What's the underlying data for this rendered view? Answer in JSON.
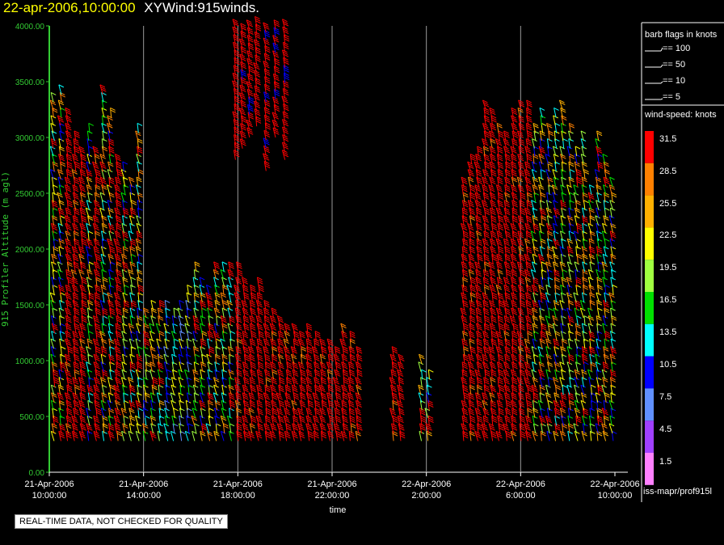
{
  "header": {
    "date_time": "22-apr-2006,10:00:00",
    "title": "XYWind:915winds."
  },
  "qc_note": "REAL-TIME DATA, NOT CHECKED FOR QUALITY",
  "source_label": "iss-mapr/prof915l",
  "barb_legend": {
    "title": "barb flags in knots",
    "entries": [
      "== 100",
      "== 50",
      "== 10",
      "== 5"
    ]
  },
  "speed_legend": {
    "title": "wind-speed: knots",
    "levels": [
      {
        "label": "31.5",
        "color": "#ff0000"
      },
      {
        "label": "28.5",
        "color": "#ff8000"
      },
      {
        "label": "25.5",
        "color": "#ffb000"
      },
      {
        "label": "22.5",
        "color": "#ffff00"
      },
      {
        "label": "19.5",
        "color": "#a0ff40"
      },
      {
        "label": "16.5",
        "color": "#00e000"
      },
      {
        "label": "13.5",
        "color": "#00ffff"
      },
      {
        "label": "10.5",
        "color": "#0000ff"
      },
      {
        "label": "7.5",
        "color": "#6090ff"
      },
      {
        "label": "4.5",
        "color": "#a040ff"
      },
      {
        "label": "1.5",
        "color": "#ff80ff"
      }
    ]
  },
  "chart_data": {
    "type": "scatter",
    "xlabel": "time",
    "ylabel": "915 Profiler Altitude (m agl)",
    "ylim": [
      0,
      4000
    ],
    "xlim_hours": [
      0,
      24
    ],
    "y_ticks": [
      "0.00",
      "500.00",
      "1000.00",
      "1500.00",
      "2000.00",
      "2500.00",
      "3000.00",
      "3500.00",
      "4000.00"
    ],
    "x_ticks": [
      {
        "hour": 0,
        "date": "21-Apr-2006",
        "time": "10:00:00"
      },
      {
        "hour": 4,
        "date": "21-Apr-2006",
        "time": "14:00:00"
      },
      {
        "hour": 8,
        "date": "21-Apr-2006",
        "time": "18:00:00"
      },
      {
        "hour": 12,
        "date": "21-Apr-2006",
        "time": "22:00:00"
      },
      {
        "hour": 16,
        "date": "22-Apr-2006",
        "time": "2:00:00"
      },
      {
        "hour": 20,
        "date": "22-Apr-2006",
        "time": "6:00:00"
      },
      {
        "hour": 24,
        "date": "22-Apr-2006",
        "time": "10:00:00"
      }
    ],
    "profiles": [
      {
        "t": 0.2,
        "top": 3350,
        "spd": "mix"
      },
      {
        "t": 0.5,
        "top": 3400,
        "spd": "mix"
      },
      {
        "t": 0.8,
        "top": 3200,
        "spd": "red"
      },
      {
        "t": 1.1,
        "top": 3000,
        "spd": "red"
      },
      {
        "t": 1.4,
        "top": 2900,
        "spd": "red"
      },
      {
        "t": 1.7,
        "top": 3100,
        "spd": "mix"
      },
      {
        "t": 2.0,
        "top": 2900,
        "spd": "red"
      },
      {
        "t": 2.3,
        "top": 3400,
        "spd": "mix"
      },
      {
        "t": 2.6,
        "top": 3200,
        "spd": "mix"
      },
      {
        "t": 2.9,
        "top": 2800,
        "spd": "red"
      },
      {
        "t": 3.2,
        "top": 2700,
        "spd": "mix"
      },
      {
        "t": 3.5,
        "top": 2600,
        "spd": "mix"
      },
      {
        "t": 3.8,
        "top": 3100,
        "spd": "mix"
      },
      {
        "t": 4.1,
        "top": 1400,
        "spd": "mix"
      },
      {
        "t": 4.4,
        "top": 1500,
        "spd": "mix"
      },
      {
        "t": 4.7,
        "top": 1500,
        "spd": "mix"
      },
      {
        "t": 5.0,
        "top": 1500,
        "spd": "low"
      },
      {
        "t": 5.3,
        "top": 1400,
        "spd": "low"
      },
      {
        "t": 5.6,
        "top": 1500,
        "spd": "low"
      },
      {
        "t": 5.9,
        "top": 1600,
        "spd": "low"
      },
      {
        "t": 6.2,
        "top": 1800,
        "spd": "mix"
      },
      {
        "t": 6.5,
        "top": 1700,
        "spd": "mix"
      },
      {
        "t": 6.8,
        "top": 1600,
        "spd": "mix"
      },
      {
        "t": 7.1,
        "top": 1800,
        "spd": "mix"
      },
      {
        "t": 7.4,
        "top": 1800,
        "spd": "mix"
      },
      {
        "t": 7.7,
        "top": 1800,
        "spd": "mix"
      },
      {
        "t": 8.0,
        "top": 1800,
        "spd": "red"
      },
      {
        "t": 8.3,
        "top": 1700,
        "spd": "red"
      },
      {
        "t": 8.6,
        "top": 1600,
        "spd": "red"
      },
      {
        "t": 8.9,
        "top": 1700,
        "spd": "red"
      },
      {
        "t": 9.2,
        "top": 1500,
        "spd": "red"
      },
      {
        "t": 9.5,
        "top": 1400,
        "spd": "red"
      },
      {
        "t": 9.8,
        "top": 1350,
        "spd": "red"
      },
      {
        "t": 10.1,
        "top": 1300,
        "spd": "red"
      },
      {
        "t": 10.4,
        "top": 1250,
        "spd": "red"
      },
      {
        "t": 10.7,
        "top": 1200,
        "spd": "red"
      },
      {
        "t": 11.0,
        "top": 1250,
        "spd": "red"
      },
      {
        "t": 11.3,
        "top": 1200,
        "spd": "red"
      },
      {
        "t": 11.6,
        "top": 1150,
        "spd": "red"
      },
      {
        "t": 11.9,
        "top": 1150,
        "spd": "red"
      },
      {
        "t": 12.2,
        "top": 1100,
        "spd": "red"
      },
      {
        "t": 12.5,
        "top": 1300,
        "spd": "red"
      },
      {
        "t": 12.8,
        "top": 1200,
        "spd": "red"
      },
      {
        "t": 13.1,
        "top": 1100,
        "spd": "red"
      },
      {
        "t": 14.6,
        "top": 1100,
        "spd": "red"
      },
      {
        "t": 14.9,
        "top": 1000,
        "spd": "red"
      },
      {
        "t": 15.8,
        "top": 1000,
        "spd": "mix"
      },
      {
        "t": 16.1,
        "top": 900,
        "spd": "mix"
      },
      {
        "t": 17.6,
        "top": 2600,
        "spd": "red"
      },
      {
        "t": 17.9,
        "top": 2800,
        "spd": "red"
      },
      {
        "t": 18.2,
        "top": 2900,
        "spd": "red"
      },
      {
        "t": 18.5,
        "top": 3300,
        "spd": "red"
      },
      {
        "t": 18.8,
        "top": 3200,
        "spd": "red"
      },
      {
        "t": 19.1,
        "top": 3100,
        "spd": "red"
      },
      {
        "t": 19.4,
        "top": 3000,
        "spd": "red"
      },
      {
        "t": 19.7,
        "top": 3200,
        "spd": "red"
      },
      {
        "t": 20.0,
        "top": 3300,
        "spd": "red"
      },
      {
        "t": 20.3,
        "top": 3300,
        "spd": "red"
      },
      {
        "t": 20.6,
        "top": 3100,
        "spd": "mix"
      },
      {
        "t": 20.9,
        "top": 3200,
        "spd": "mix"
      },
      {
        "t": 21.2,
        "top": 3100,
        "spd": "mix"
      },
      {
        "t": 21.5,
        "top": 3200,
        "spd": "mix"
      },
      {
        "t": 21.8,
        "top": 3300,
        "spd": "mix"
      },
      {
        "t": 22.1,
        "top": 3100,
        "spd": "mix"
      },
      {
        "t": 22.4,
        "top": 2900,
        "spd": "mix"
      },
      {
        "t": 22.7,
        "top": 3000,
        "spd": "mix"
      },
      {
        "t": 23.0,
        "top": 2500,
        "spd": "mix"
      },
      {
        "t": 23.3,
        "top": 3000,
        "spd": "mix"
      },
      {
        "t": 23.6,
        "top": 2800,
        "spd": "mix"
      },
      {
        "t": 23.9,
        "top": 2600,
        "spd": "mix"
      }
    ],
    "upper_profiles": [
      {
        "t": 7.9,
        "bottom": 2800,
        "top": 4000
      },
      {
        "t": 8.2,
        "bottom": 2900,
        "top": 4000
      },
      {
        "t": 8.5,
        "bottom": 3000,
        "top": 4000
      },
      {
        "t": 8.8,
        "bottom": 3100,
        "top": 4000
      },
      {
        "t": 9.2,
        "bottom": 2700,
        "top": 4000
      },
      {
        "t": 9.6,
        "bottom": 3000,
        "top": 4000
      },
      {
        "t": 10.0,
        "bottom": 2800,
        "top": 4000
      }
    ]
  }
}
